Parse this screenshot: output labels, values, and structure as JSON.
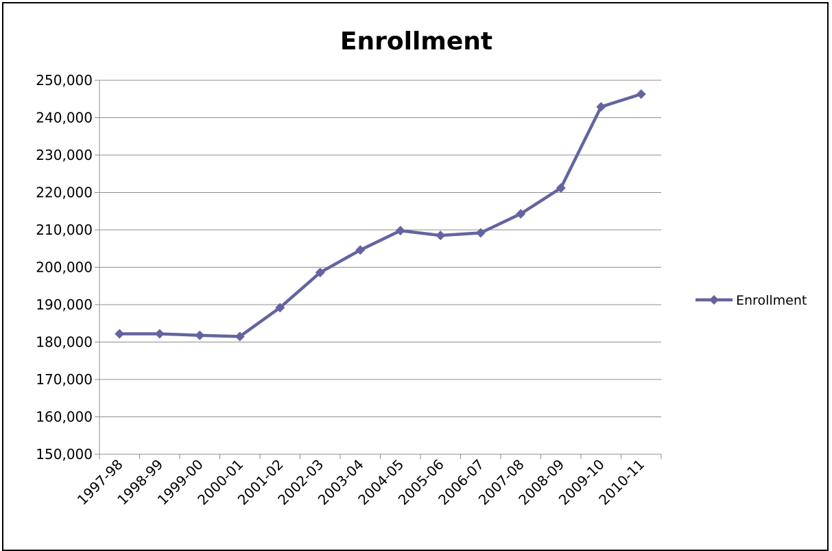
{
  "chart_data": {
    "type": "line",
    "title": "Enrollment",
    "xlabel": "",
    "ylabel": "",
    "categories": [
      "1997-98",
      "1998-99",
      "1999-00",
      "2000-01",
      "2001-02",
      "2002-03",
      "2003-04",
      "2004-05",
      "2005-06",
      "2006-07",
      "2007-08",
      "2008-09",
      "2009-10",
      "2010-11"
    ],
    "series": [
      {
        "name": "Enrollment",
        "color": "#6464A0",
        "values": [
          182200,
          182200,
          181800,
          181500,
          189200,
          198600,
          204600,
          209800,
          208500,
          209200,
          214300,
          221200,
          242900,
          246300
        ]
      }
    ],
    "ylim": [
      150000,
      250000
    ],
    "yticks": [
      "150,000",
      "160,000",
      "170,000",
      "180,000",
      "190,000",
      "200,000",
      "210,000",
      "220,000",
      "230,000",
      "240,000",
      "250,000"
    ],
    "grid": true,
    "legend": "right",
    "marker": "diamond"
  }
}
